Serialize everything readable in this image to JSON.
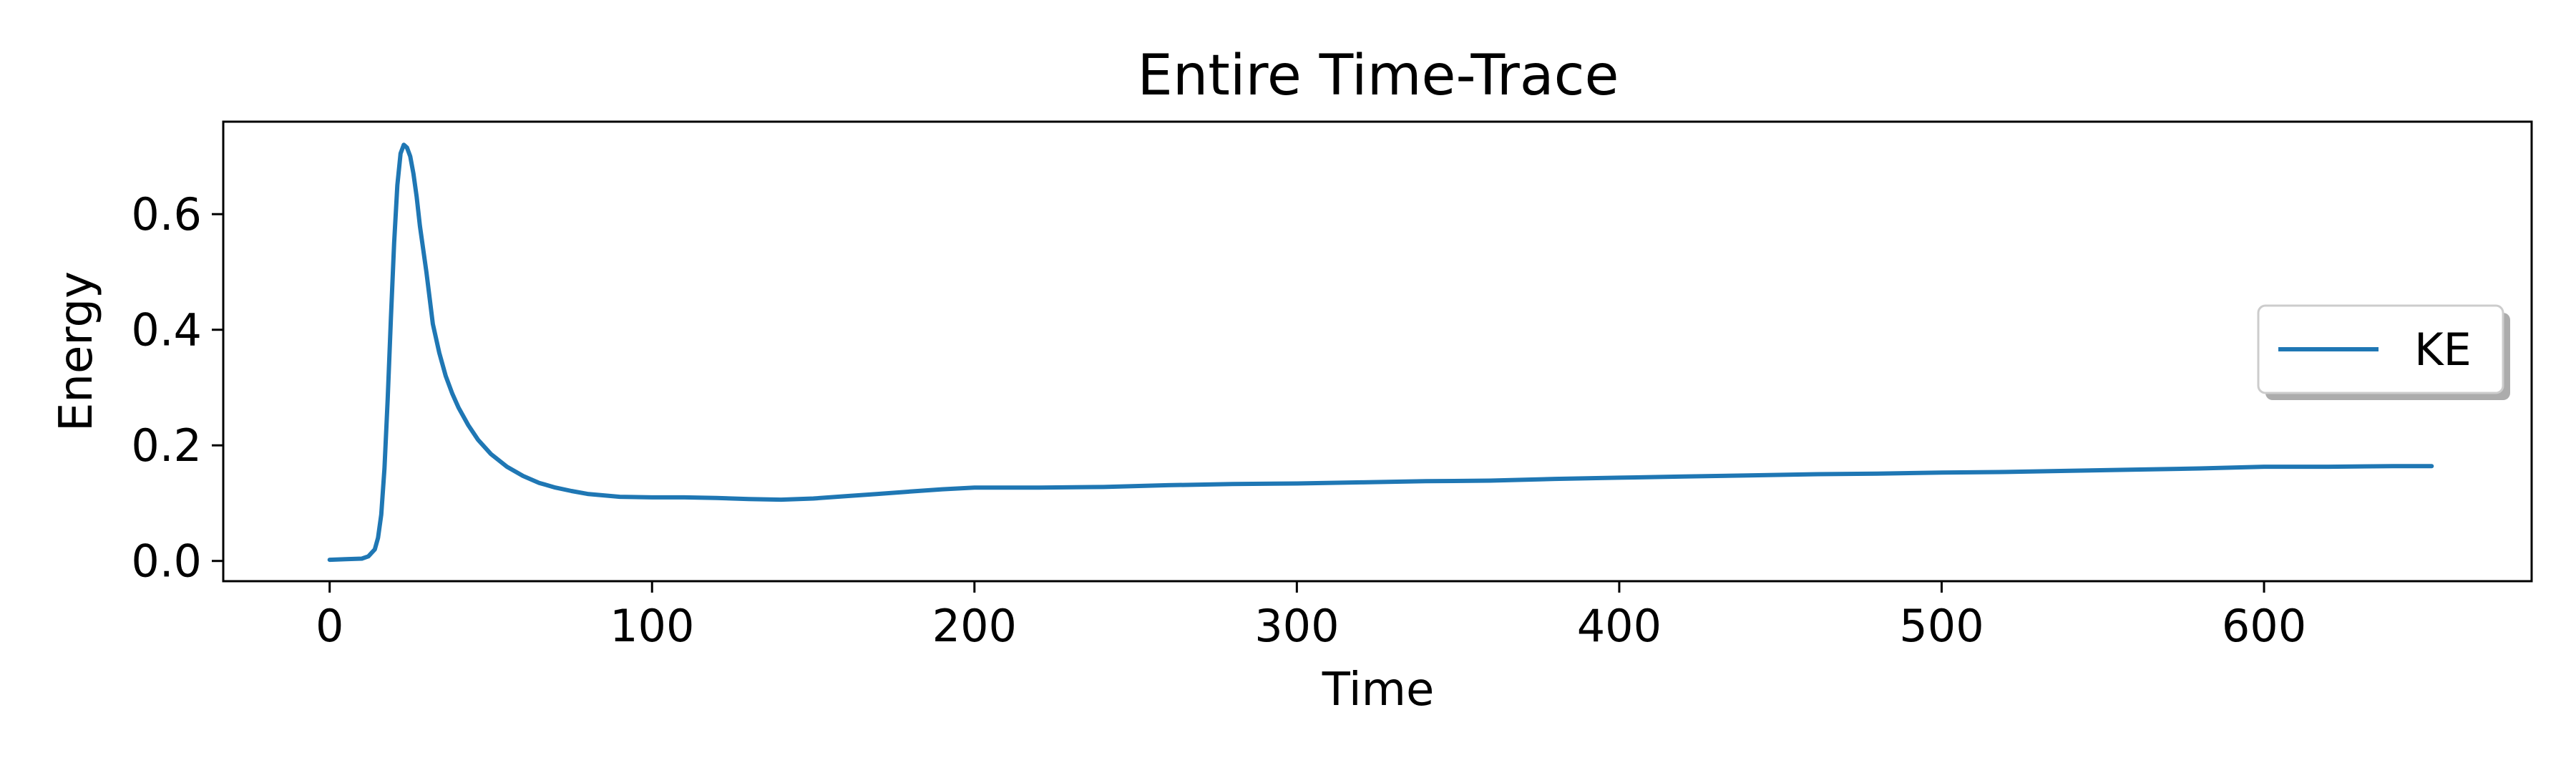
{
  "chart_data": {
    "type": "line",
    "title": "Entire Time-Trace",
    "xlabel": "Time",
    "ylabel": "Energy",
    "xlim": [
      -33,
      683
    ],
    "ylim": [
      -0.035,
      0.76
    ],
    "xticks": [
      0,
      100,
      200,
      300,
      400,
      500,
      600
    ],
    "xtick_labels": [
      "0",
      "100",
      "200",
      "300",
      "400",
      "500",
      "600"
    ],
    "yticks": [
      0.0,
      0.2,
      0.4,
      0.6
    ],
    "ytick_labels": [
      "0.0",
      "0.2",
      "0.4",
      "0.6"
    ],
    "grid": false,
    "legend": {
      "position": "center-right",
      "entries": [
        "KE"
      ]
    },
    "series": [
      {
        "name": "KE",
        "color": "#1f77b4",
        "x": [
          0,
          5,
          10,
          12,
          14,
          15,
          16,
          17,
          18,
          19,
          20,
          21,
          22,
          23,
          24,
          25,
          26,
          27,
          28,
          30,
          32,
          34,
          36,
          38,
          40,
          43,
          46,
          50,
          55,
          60,
          65,
          70,
          75,
          80,
          90,
          100,
          110,
          120,
          130,
          140,
          150,
          160,
          170,
          180,
          190,
          200,
          220,
          240,
          260,
          280,
          300,
          320,
          340,
          360,
          380,
          400,
          420,
          440,
          460,
          480,
          500,
          520,
          540,
          560,
          580,
          600,
          620,
          640,
          652
        ],
        "y": [
          0.002,
          0.003,
          0.004,
          0.008,
          0.02,
          0.04,
          0.08,
          0.16,
          0.28,
          0.42,
          0.55,
          0.65,
          0.705,
          0.72,
          0.715,
          0.7,
          0.67,
          0.63,
          0.58,
          0.5,
          0.41,
          0.36,
          0.32,
          0.29,
          0.265,
          0.235,
          0.21,
          0.185,
          0.163,
          0.147,
          0.135,
          0.127,
          0.121,
          0.116,
          0.111,
          0.11,
          0.11,
          0.109,
          0.107,
          0.106,
          0.108,
          0.112,
          0.116,
          0.12,
          0.124,
          0.127,
          0.127,
          0.128,
          0.131,
          0.133,
          0.134,
          0.136,
          0.138,
          0.139,
          0.142,
          0.144,
          0.146,
          0.148,
          0.15,
          0.151,
          0.153,
          0.154,
          0.156,
          0.158,
          0.16,
          0.163,
          0.163,
          0.164,
          0.164
        ]
      }
    ]
  }
}
